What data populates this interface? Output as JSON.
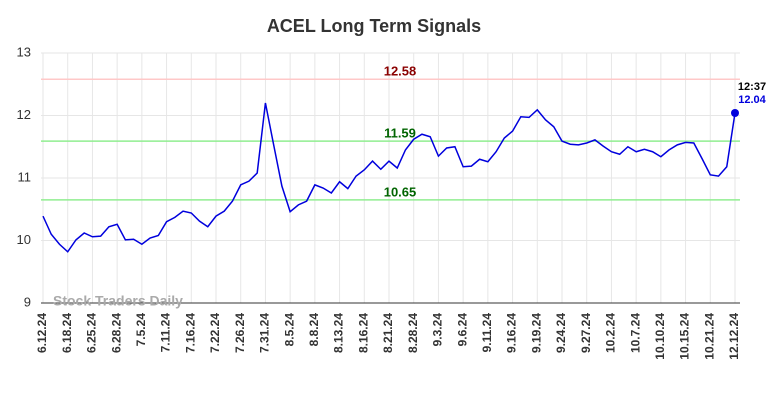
{
  "chart_data": {
    "type": "line",
    "title": "ACEL Long Term Signals",
    "watermark": "Stock Traders Daily",
    "categories": [
      "6.12.24",
      null,
      null,
      "6.18.24",
      null,
      null,
      "6.25.24",
      null,
      null,
      "6.28.24",
      null,
      null,
      "7.5.24",
      null,
      null,
      "7.11.24",
      null,
      null,
      "7.16.24",
      null,
      null,
      "7.22.24",
      null,
      null,
      "7.26.24",
      null,
      null,
      "7.31.24",
      null,
      null,
      "8.5.24",
      null,
      null,
      "8.8.24",
      null,
      null,
      "8.13.24",
      null,
      null,
      "8.16.24",
      null,
      null,
      "8.21.24",
      null,
      null,
      "8.28.24",
      null,
      null,
      "9.3.24",
      null,
      null,
      "9.6.24",
      null,
      null,
      "9.11.24",
      null,
      null,
      "9.16.24",
      null,
      null,
      "9.19.24",
      null,
      null,
      "9.24.24",
      null,
      null,
      "9.27.24",
      null,
      null,
      "10.2.24",
      null,
      null,
      "10.7.24",
      null,
      null,
      "10.10.24",
      null,
      null,
      "10.15.24",
      null,
      null,
      "10.21.24",
      null,
      null,
      "12.12.24"
    ],
    "series": [
      {
        "color": "#0000dd",
        "values": [
          10.39,
          10.1,
          9.94,
          9.82,
          10.01,
          10.12,
          10.06,
          10.07,
          10.22,
          10.26,
          10.01,
          10.02,
          9.94,
          10.04,
          10.08,
          10.3,
          10.37,
          10.47,
          10.44,
          10.31,
          10.22,
          10.39,
          10.47,
          10.63,
          10.89,
          10.95,
          11.08,
          12.2,
          11.53,
          10.87,
          10.46,
          10.57,
          10.63,
          10.89,
          10.84,
          10.76,
          10.94,
          10.83,
          11.03,
          11.13,
          11.27,
          11.14,
          11.27,
          11.16,
          11.45,
          11.62,
          11.7,
          11.66,
          11.35,
          11.48,
          11.5,
          11.18,
          11.19,
          11.3,
          11.26,
          11.42,
          11.64,
          11.75,
          11.98,
          11.97,
          12.09,
          11.93,
          11.82,
          11.59,
          11.54,
          11.53,
          11.56,
          11.61,
          11.51,
          11.42,
          11.38,
          11.5,
          11.42,
          11.46,
          11.42,
          11.34,
          11.45,
          11.53,
          11.57,
          11.56,
          11.31,
          11.05,
          11.03,
          11.18,
          12.04
        ]
      }
    ],
    "last_time": "12:37",
    "hlines": [
      {
        "value": 12.58,
        "color": "#ffc8c8",
        "label_color": "#8b0000"
      },
      {
        "value": 11.59,
        "color": "#90ee90",
        "label_color": "#006400"
      },
      {
        "value": 10.65,
        "color": "#90ee90",
        "label_color": "#006400"
      }
    ],
    "ylim": [
      9,
      13
    ],
    "yticks": [
      9,
      10,
      11,
      12,
      13
    ],
    "grid": true
  }
}
